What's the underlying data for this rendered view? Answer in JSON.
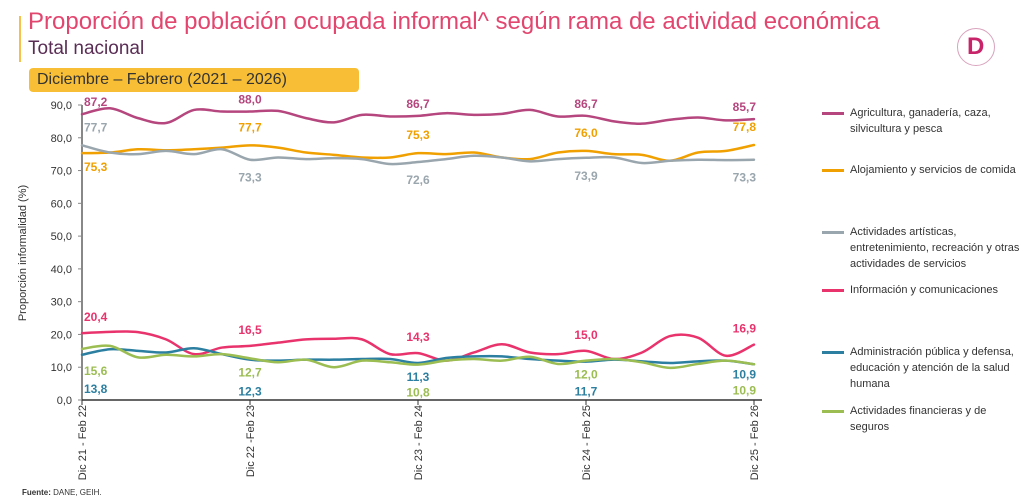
{
  "header": {
    "title": "Proporción de población ocupada informal^ según rama de actividad económica",
    "subtitle": "Total nacional",
    "period": "Diciembre – Febrero (2021 – 2026)",
    "logo_letter": "D"
  },
  "source": {
    "label": "Fuente:",
    "text": "DANE, GEIH."
  },
  "chart_data": {
    "type": "line",
    "ylabel": "Proporción informalidad (%)",
    "xlabel": "",
    "ylim": [
      0,
      90
    ],
    "y_ticks": [
      "0,0",
      "10,0",
      "20,0",
      "30,0",
      "40,0",
      "50,0",
      "60,0",
      "70,0",
      "80,0",
      "90,0"
    ],
    "x_ticks": [
      "Dic 21 - Feb 22",
      "Dic 22 -Feb 23",
      "Dic 23 - Feb 24",
      "Dic 24 - Feb 25",
      "Dic 25 - Feb 26"
    ],
    "grid": false,
    "legend_position": "right",
    "series": [
      {
        "name": "Agricultura, ganadería, caza, silvicultura y pesca",
        "color": "#b5467e",
        "values": [
          87.2,
          89.0,
          86.0,
          84.5,
          88.5,
          88.0,
          88.0,
          88.2,
          86.0,
          84.7,
          87.0,
          86.5,
          86.7,
          87.5,
          87.0,
          87.3,
          88.5,
          86.5,
          86.7,
          85.0,
          84.3,
          85.5,
          86.2,
          85.3,
          85.7
        ],
        "labels": [
          "87,2",
          "88,0",
          "86,7",
          "86,7",
          "85,7"
        ],
        "label_side": "above"
      },
      {
        "name": "Alojamiento y servicios de comida",
        "color": "#f0a000",
        "values": [
          75.3,
          75.5,
          76.5,
          76.2,
          76.5,
          77.0,
          77.7,
          77.0,
          75.5,
          74.8,
          74.0,
          74.0,
          75.3,
          75.0,
          75.5,
          74.0,
          73.5,
          75.5,
          76.0,
          75.0,
          74.8,
          73.0,
          75.5,
          76.0,
          77.8
        ],
        "labels": [
          "75,3",
          "77,7",
          "75,3",
          "76,0",
          "77,8"
        ],
        "label_side": "mixed"
      },
      {
        "name": "Actividades artísticas, entretenimiento, recreación y otras actividades de servicios",
        "color": "#9aa6ad",
        "values": [
          77.7,
          75.5,
          75.0,
          76.0,
          75.0,
          76.5,
          73.3,
          74.0,
          73.5,
          73.8,
          73.5,
          72.0,
          72.6,
          73.5,
          74.5,
          74.0,
          72.8,
          73.5,
          73.9,
          74.0,
          72.3,
          73.0,
          73.3,
          73.2,
          73.3
        ],
        "labels": [
          "77,7",
          "73,3",
          "72,6",
          "73,9",
          "73,3"
        ],
        "label_side": "mixed"
      },
      {
        "name": "Información y comunicaciones",
        "color": "#e8336d",
        "values": [
          20.4,
          20.8,
          20.7,
          18.5,
          14.0,
          16.0,
          16.5,
          17.5,
          18.5,
          18.7,
          18.5,
          14.0,
          14.3,
          12.0,
          14.5,
          17.0,
          14.5,
          14.0,
          15.0,
          12.5,
          14.5,
          19.5,
          19.0,
          13.5,
          16.9
        ],
        "labels": [
          "20,4",
          "16,5",
          "14,3",
          "15,0",
          "16,9"
        ],
        "label_side": "above"
      },
      {
        "name": "Administración pública y defensa, educación y atención de la salud humana",
        "color": "#2c7fa0",
        "values": [
          13.8,
          15.5,
          15.0,
          14.5,
          15.8,
          14.0,
          12.3,
          12.0,
          12.3,
          12.3,
          12.5,
          12.5,
          11.3,
          12.8,
          13.3,
          13.3,
          12.5,
          12.0,
          11.7,
          12.3,
          11.8,
          11.3,
          11.8,
          12.0,
          10.9
        ],
        "labels": [
          "13,8",
          "12,3",
          "11,3",
          "11,7",
          "10,9"
        ],
        "label_side": "below"
      },
      {
        "name": "Actividades financieras y de seguros",
        "color": "#9bbd52",
        "values": [
          15.6,
          16.5,
          13.0,
          13.8,
          13.3,
          14.0,
          12.7,
          11.5,
          12.3,
          10.0,
          12.0,
          11.5,
          10.8,
          12.0,
          12.5,
          12.0,
          13.2,
          11.0,
          12.0,
          12.5,
          11.5,
          9.8,
          11.0,
          12.0,
          10.9
        ],
        "labels": [
          "15,6",
          "12,7",
          "10,8",
          "12,0",
          "10,9"
        ],
        "label_side": "below"
      }
    ]
  }
}
